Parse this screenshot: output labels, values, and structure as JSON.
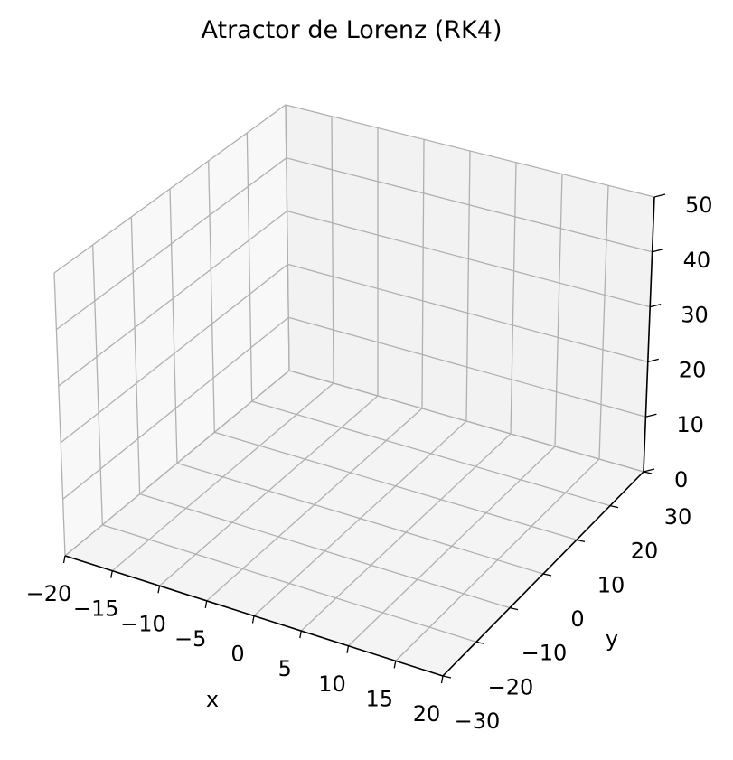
{
  "chart_data": {
    "type": "line",
    "projection": "3d",
    "title": "Atractor de Lorenz (RK4)",
    "xlabel": "x",
    "ylabel": "y",
    "zlabel": "",
    "xlim": [
      -20,
      20
    ],
    "ylim": [
      -30,
      30
    ],
    "zlim": [
      0,
      50
    ],
    "x_ticks": [
      "−20",
      "−15",
      "−10",
      "−5",
      "0",
      "5",
      "10",
      "15",
      "20"
    ],
    "y_ticks": [
      "−30",
      "−20",
      "−10",
      "0",
      "10",
      "20",
      "30"
    ],
    "z_ticks": [
      "0",
      "10",
      "20",
      "30",
      "40",
      "50"
    ],
    "grid": true,
    "series": [],
    "colors": {
      "pane_back": "#f2f2f2",
      "pane_side": "#f8f8f8",
      "pane_floor": "#f4f4f4",
      "grid": "#b0b0b0",
      "axis": "#000000"
    }
  }
}
